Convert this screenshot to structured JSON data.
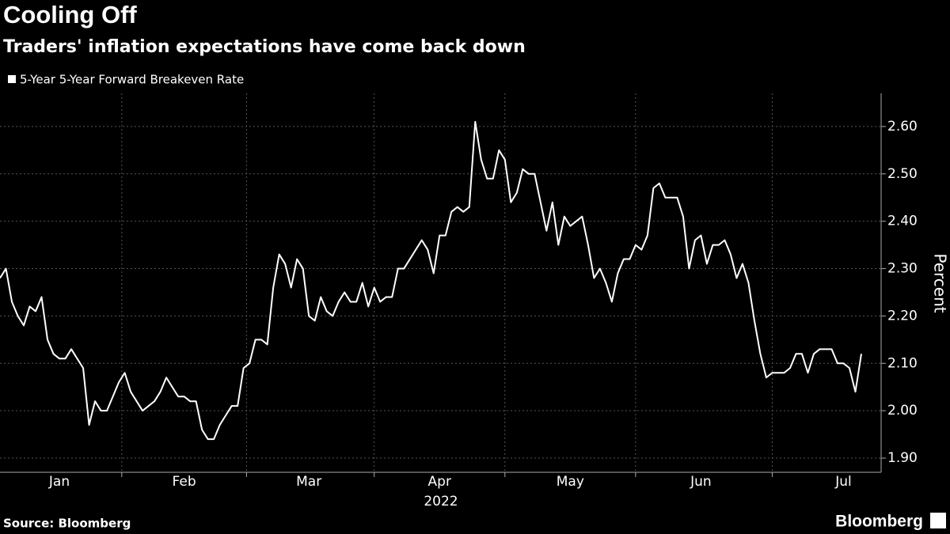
{
  "chart_data": {
    "type": "line",
    "title": "Cooling Off",
    "subtitle": "Traders' inflation expectations have come back down",
    "ylabel": "Percent",
    "xlabel": "2022",
    "source": "Source: Bloomberg",
    "logo": "Bloomberg",
    "grid": true,
    "legend": "top-left",
    "ylim": [
      1.87,
      2.67
    ],
    "yticks": [
      {
        "value": 1.9,
        "label": "1.90"
      },
      {
        "value": 2,
        "label": "2.00"
      },
      {
        "value": 2.1,
        "label": "2.10"
      },
      {
        "value": 2.2,
        "label": "2.20"
      },
      {
        "value": 2.3,
        "label": "2.30"
      },
      {
        "value": 2.4,
        "label": "2.40"
      },
      {
        "value": 2.5,
        "label": "2.50"
      },
      {
        "value": 2.6,
        "label": "2.60"
      }
    ],
    "categories": [
      null,
      null,
      null,
      null,
      null,
      null,
      null,
      null,
      null,
      null,
      "Jan",
      null,
      null,
      null,
      null,
      null,
      null,
      null,
      null,
      null,
      null,
      null,
      null,
      null,
      null,
      null,
      null,
      null,
      null,
      null,
      null,
      "Feb",
      null,
      null,
      null,
      null,
      null,
      null,
      null,
      null,
      null,
      null,
      null,
      null,
      null,
      null,
      null,
      null,
      null,
      null,
      null,
      null,
      "Mar",
      null,
      null,
      null,
      null,
      null,
      null,
      null,
      null,
      null,
      null,
      null,
      null,
      null,
      null,
      null,
      null,
      null,
      null,
      null,
      null,
      null,
      "Apr",
      null,
      null,
      null,
      null,
      null,
      null,
      null,
      null,
      null,
      null,
      null,
      null,
      null,
      null,
      null,
      null,
      null,
      null,
      null,
      null,
      null,
      "May",
      null,
      null,
      null,
      null,
      null,
      null,
      null,
      null,
      null,
      null,
      null,
      null,
      null,
      null,
      null,
      null,
      null,
      null,
      null,
      null,
      null,
      "Jun",
      null,
      null,
      null,
      null,
      null,
      null,
      null,
      null,
      null,
      null,
      null,
      null,
      null,
      null,
      null,
      null,
      null,
      null,
      null,
      null,
      null,
      null,
      null,
      "Jul",
      null,
      null,
      null
    ],
    "series": [
      {
        "name": "5-Year 5-Year Forward Breakeven Rate",
        "color": "#ffffff",
        "values": [
          2.28,
          2.3,
          2.23,
          2.2,
          2.18,
          2.22,
          2.21,
          2.24,
          2.15,
          2.12,
          2.11,
          2.11,
          2.13,
          2.11,
          2.09,
          1.97,
          2.02,
          2.0,
          2.0,
          2.03,
          2.06,
          2.08,
          2.04,
          2.02,
          2.0,
          2.01,
          2.02,
          2.04,
          2.07,
          2.05,
          2.03,
          2.03,
          2.02,
          2.02,
          1.96,
          1.94,
          1.94,
          1.97,
          1.99,
          2.01,
          2.01,
          2.09,
          2.1,
          2.15,
          2.15,
          2.14,
          2.26,
          2.33,
          2.31,
          2.26,
          2.32,
          2.3,
          2.2,
          2.19,
          2.24,
          2.21,
          2.2,
          2.23,
          2.25,
          2.23,
          2.23,
          2.27,
          2.22,
          2.26,
          2.23,
          2.24,
          2.24,
          2.3,
          2.3,
          2.32,
          2.34,
          2.36,
          2.34,
          2.29,
          2.37,
          2.37,
          2.42,
          2.43,
          2.42,
          2.43,
          2.61,
          2.53,
          2.49,
          2.49,
          2.55,
          2.53,
          2.44,
          2.46,
          2.51,
          2.5,
          2.5,
          2.44,
          2.38,
          2.44,
          2.35,
          2.41,
          2.39,
          2.4,
          2.41,
          2.35,
          2.28,
          2.3,
          2.27,
          2.23,
          2.29,
          2.32,
          2.32,
          2.35,
          2.34,
          2.37,
          2.47,
          2.48,
          2.45,
          2.45,
          2.45,
          2.41,
          2.3,
          2.36,
          2.37,
          2.31,
          2.35,
          2.35,
          2.36,
          2.33,
          2.28,
          2.31,
          2.27,
          2.19,
          2.12,
          2.07,
          2.08,
          2.08,
          2.08,
          2.09,
          2.12,
          2.12,
          2.08,
          2.12,
          2.13,
          2.13,
          2.13,
          2.1,
          2.1,
          2.09,
          2.04,
          2.12
        ]
      }
    ]
  }
}
